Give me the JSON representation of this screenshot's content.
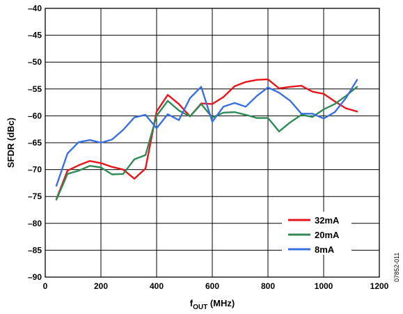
{
  "figure_id": "07852-011",
  "chart_data": {
    "type": "line",
    "xlabel": {
      "main": "f",
      "sub": "OUT",
      "unit": " (MHz)"
    },
    "ylabel": "SFDR (dBc)",
    "xlim": [
      0,
      1200
    ],
    "ylim": [
      -90,
      -40
    ],
    "xticks": [
      0,
      200,
      400,
      600,
      800,
      1000,
      1200
    ],
    "yticks": [
      -90,
      -85,
      -80,
      -75,
      -70,
      -65,
      -60,
      -55,
      -50,
      -45,
      -40
    ],
    "xtick_labels": [
      "0",
      "200",
      "400",
      "600",
      "800",
      "1000",
      "1200"
    ],
    "ytick_labels": [
      "–90",
      "–85",
      "–80",
      "–75",
      "–70",
      "–65",
      "–60",
      "–55",
      "–50",
      "–45",
      "–40"
    ],
    "grid": true,
    "legend_position": "bottom-right",
    "series": [
      {
        "name": "32mA",
        "color": "#e8141b",
        "x": [
          40,
          80,
          120,
          160,
          200,
          240,
          280,
          320,
          360,
          400,
          440,
          480,
          520,
          560,
          600,
          640,
          680,
          720,
          760,
          800,
          840,
          880,
          920,
          960,
          1000,
          1040,
          1080,
          1120
        ],
        "y": [
          -75.5,
          -70.2,
          -69.2,
          -68.4,
          -68.8,
          -69.5,
          -70.0,
          -71.7,
          -69.8,
          -59.2,
          -56.1,
          -57.8,
          -60.1,
          -57.7,
          -57.8,
          -56.5,
          -54.5,
          -53.7,
          -53.3,
          -53.2,
          -54.9,
          -54.6,
          -54.4,
          -55.5,
          -55.9,
          -57.3,
          -58.6,
          -59.2
        ]
      },
      {
        "name": "20mA",
        "color": "#2e8b57",
        "x": [
          40,
          80,
          120,
          160,
          200,
          240,
          280,
          320,
          360,
          400,
          440,
          480,
          520,
          560,
          600,
          640,
          680,
          720,
          760,
          800,
          840,
          880,
          920,
          960,
          1000,
          1040,
          1080,
          1120
        ],
        "y": [
          -75.6,
          -70.8,
          -70.2,
          -69.3,
          -69.6,
          -70.9,
          -70.8,
          -68.1,
          -67.3,
          -60.0,
          -57.2,
          -59.0,
          -60.1,
          -57.8,
          -60.3,
          -59.4,
          -59.3,
          -59.8,
          -60.4,
          -60.4,
          -62.9,
          -61.2,
          -59.8,
          -60.2,
          -58.8,
          -57.8,
          -56.3,
          -54.6
        ]
      },
      {
        "name": "8mA",
        "color": "#3a6fe0",
        "x": [
          40,
          80,
          120,
          160,
          200,
          240,
          280,
          320,
          360,
          400,
          440,
          480,
          520,
          560,
          600,
          640,
          680,
          720,
          760,
          800,
          840,
          880,
          920,
          960,
          1000,
          1040,
          1080,
          1120
        ],
        "y": [
          -73.0,
          -67.0,
          -64.9,
          -64.5,
          -65.0,
          -64.4,
          -62.6,
          -60.3,
          -59.8,
          -62.3,
          -59.7,
          -60.8,
          -56.7,
          -54.6,
          -61.1,
          -58.3,
          -57.6,
          -58.3,
          -56.3,
          -54.7,
          -55.7,
          -57.2,
          -59.6,
          -59.6,
          -60.5,
          -59.3,
          -56.7,
          -53.3
        ]
      }
    ]
  }
}
